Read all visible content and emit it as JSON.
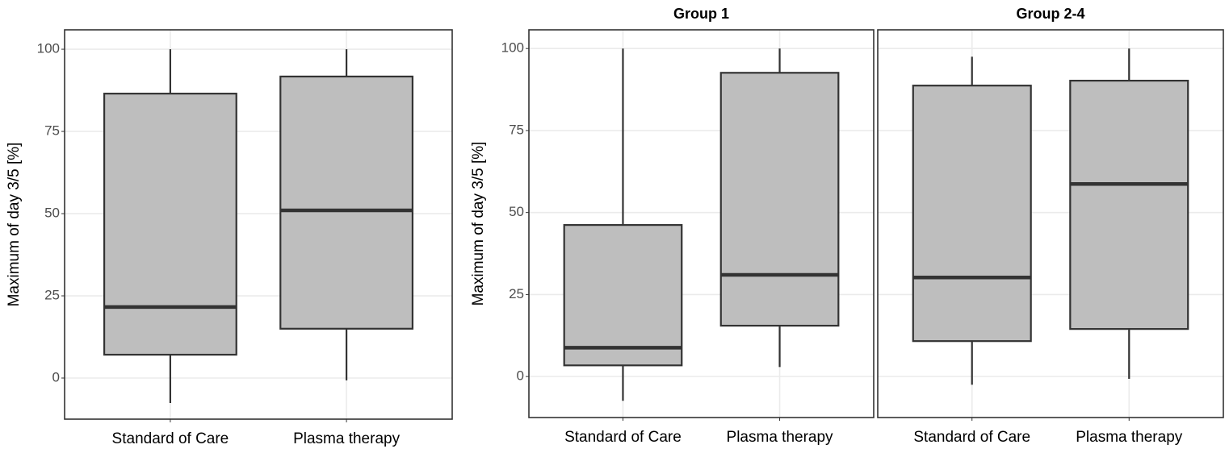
{
  "chart_data": [
    {
      "type": "box",
      "y_label": "Maximum of day 3/5 [%]",
      "categories": [
        "Standard of Care",
        "Plasma therapy"
      ],
      "boxes": [
        {
          "low": -7.6,
          "q1": 7.1,
          "median": 21.6,
          "q3": 86.5,
          "high": 100
        },
        {
          "low": -0.7,
          "q1": 15,
          "median": 51,
          "q3": 91.7,
          "high": 100
        }
      ],
      "color": "#bebebe",
      "ylim": [
        -12.5,
        105.9
      ],
      "yticks": [
        0,
        25,
        50,
        75,
        100
      ],
      "grid": true
    },
    {
      "type": "box",
      "title": "Group 1",
      "y_label": "Maximum of day 3/5 [%]",
      "categories": [
        "Standard of Care",
        "Plasma therapy"
      ],
      "boxes": [
        {
          "low": -7.4,
          "q1": 3.4,
          "median": 8.8,
          "q3": 46.2,
          "high": 100
        },
        {
          "low": 2.9,
          "q1": 15.5,
          "median": 31,
          "q3": 92.6,
          "high": 100
        }
      ],
      "color": "#bebebe",
      "ylim": [
        -12.5,
        105.7
      ],
      "yticks": [
        0,
        25,
        50,
        75,
        100
      ],
      "grid": true
    },
    {
      "type": "box",
      "title": "Group 2-4",
      "categories": [
        "Standard of Care",
        "Plasma therapy"
      ],
      "boxes": [
        {
          "low": -2.5,
          "q1": 10.8,
          "median": 30.2,
          "q3": 88.7,
          "high": 97.5
        },
        {
          "low": -0.7,
          "q1": 14.5,
          "median": 58.7,
          "q3": 90.2,
          "high": 100
        }
      ],
      "color": "#bebebe",
      "ylim": [
        -12.5,
        105.7
      ],
      "yticks": [
        0,
        25,
        50,
        75,
        100
      ],
      "grid": true,
      "ytick_labels": false
    }
  ]
}
